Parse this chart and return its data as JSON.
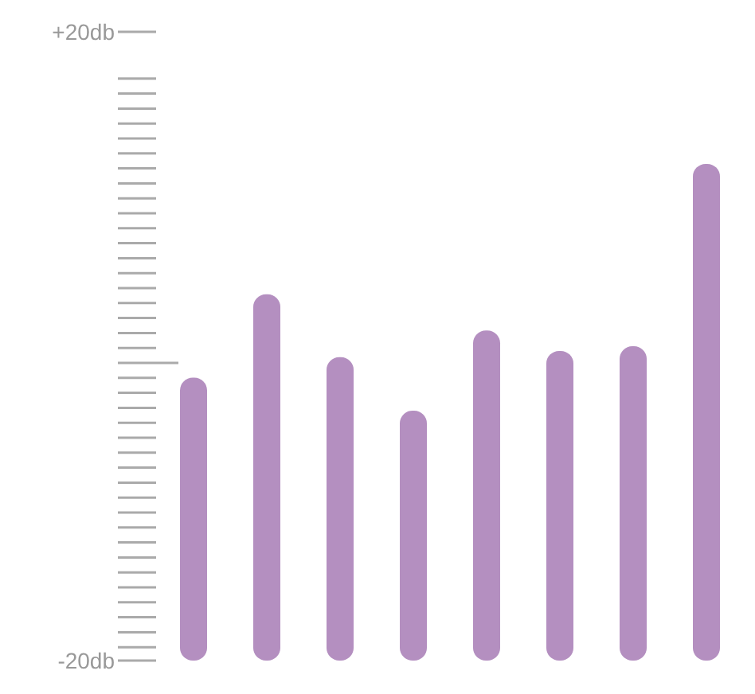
{
  "chart_data": {
    "type": "bar",
    "categories": [
      null,
      null,
      null,
      null,
      null,
      null,
      null,
      null
    ],
    "values": [
      18,
      23.3,
      19.3,
      15.9,
      21,
      19.7,
      20,
      31.6
    ],
    "base": [
      -20,
      -20,
      -20,
      -20,
      -20,
      -20,
      -20,
      -20
    ],
    "color": "#b48fc0",
    "ylim": [
      -20,
      20
    ],
    "yticks": [
      {
        "value": -20,
        "label": "-20db"
      },
      {
        "value": 20,
        "label": "+20db"
      }
    ],
    "tick_labels": "y",
    "grid": false,
    "legend": false
  }
}
